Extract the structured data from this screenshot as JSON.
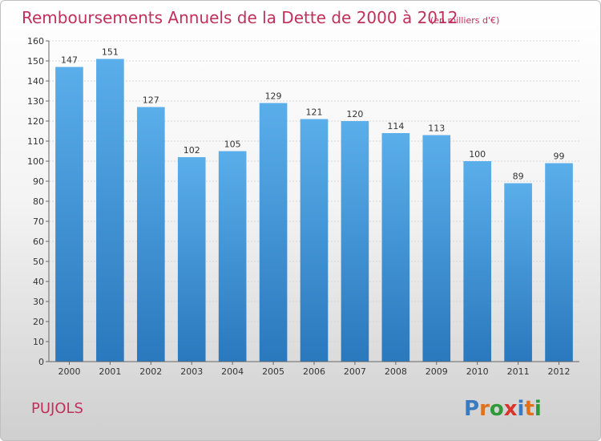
{
  "chart_data": {
    "type": "bar",
    "title": "Remboursements Annuels de la Dette de 2000 à 2012",
    "subtitle": "(en milliers d'€)",
    "categories": [
      "2000",
      "2001",
      "2002",
      "2003",
      "2004",
      "2005",
      "2006",
      "2007",
      "2008",
      "2009",
      "2010",
      "2011",
      "2012"
    ],
    "values": [
      147,
      151,
      127,
      102,
      105,
      129,
      121,
      120,
      114,
      113,
      100,
      89,
      99
    ],
    "ylim": [
      0,
      160
    ],
    "ytick_step": 10,
    "grid": true,
    "bar_color": "#3b8fd6"
  },
  "footer": {
    "commune": "PUJOLS",
    "logo_letters": [
      "P",
      "r",
      "o",
      "x",
      "i",
      "t",
      "i"
    ],
    "logo_colors": [
      "#3a7bbf",
      "#e0701a",
      "#2e9a3a",
      "#d8342b",
      "#3a7bbf",
      "#e0701a",
      "#2e9a3a"
    ]
  }
}
